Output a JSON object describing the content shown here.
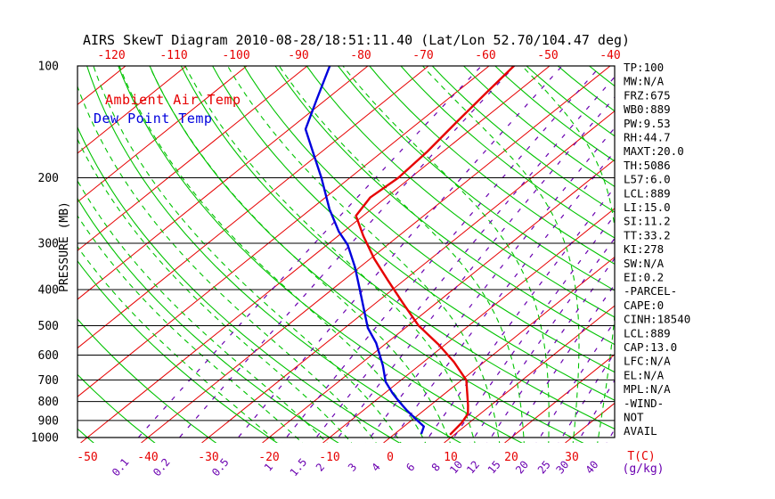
{
  "title": "AIRS SkewT Diagram 2010-08-28/18:51:11.40 (Lat/Lon 52.70/104.47 deg)",
  "colors": {
    "isotherm_red": "#e60000",
    "adiabat_green": "#00c300",
    "mixing_purple": "#6a00b0",
    "temp_curve_red": "#e60000",
    "dew_curve_blue": "#0000dd",
    "grid_black": "#000000"
  },
  "legend": {
    "temp_label": "Ambient Air Temp",
    "dew_label": "Dew Point Temp"
  },
  "axes": {
    "pressure_label": "PRESSURE (MB)",
    "pressure_ticks": [
      100,
      200,
      300,
      400,
      500,
      600,
      700,
      800,
      900,
      1000
    ],
    "top_temp_ticks": [
      -120,
      -110,
      -100,
      -90,
      -80,
      -70,
      -60,
      -50,
      -40
    ],
    "bottom_temp_ticks": [
      -50,
      -40,
      -30,
      -20,
      -10,
      0,
      10,
      20,
      30
    ],
    "temp_unit_label": "T(C)",
    "mixing_ratio_ticks": [
      0.1,
      0.2,
      0.5,
      1,
      1.5,
      2,
      3,
      4,
      6,
      8,
      10,
      12,
      15,
      20,
      25,
      30,
      40
    ],
    "mixing_unit_label": "(g/kg)"
  },
  "stats": [
    "TP:100",
    "MW:N/A",
    "FRZ:675",
    "WB0:889",
    "PW:9.53",
    "RH:44.7",
    "MAXT:20.0",
    "TH:5086",
    "L57:6.0",
    "LCL:889",
    "LI:15.0",
    "SI:11.2",
    "TT:33.2",
    "KI:278",
    "SW:N/A",
    "EI:0.2",
    "-PARCEL-",
    "CAPE:0",
    "CINH:18540",
    "LCL:889",
    "CAP:13.0",
    "LFC:N/A",
    "EL:N/A",
    "MPL:N/A",
    "-WIND-",
    "NOT",
    "AVAIL"
  ],
  "chart_data": {
    "type": "line",
    "title": "AIRS SkewT Diagram 2010-08-28/18:51:11.40 (Lat/Lon 52.70/104.47 deg)",
    "xlabel": "T(C)",
    "ylabel": "PRESSURE (MB)",
    "y_scale": "log",
    "y_range_mb": [
      100,
      1000
    ],
    "x_bottom_axis_range_C": [
      -50,
      30
    ],
    "x_top_axis_range_C": [
      -120,
      -40
    ],
    "grid": "skew-t log-p",
    "legend_position": "top-left-inside",
    "isotherms_C": {
      "min": -120,
      "max": 30,
      "step": 10
    },
    "dry_adiabats_theta_C": {
      "min": -50,
      "max": 180,
      "step": 10
    },
    "moist_adiabats_thetaw_C": {
      "min": -16,
      "max": 36,
      "step": 4
    },
    "mixing_ratio_lines_g_kg": [
      0.1,
      0.2,
      0.5,
      1,
      1.5,
      2,
      3,
      4,
      6,
      8,
      10,
      12,
      15,
      20,
      25,
      30,
      40
    ],
    "series": [
      {
        "name": "Ambient Air Temp",
        "points_p_mb_T_C": [
          [
            100,
            -55.9
          ],
          [
            119,
            -54.9
          ],
          [
            142,
            -53.8
          ],
          [
            170,
            -52.6
          ],
          [
            200,
            -52.0
          ],
          [
            226,
            -52.6
          ],
          [
            253,
            -51.2
          ],
          [
            287,
            -45.8
          ],
          [
            330,
            -39.4
          ],
          [
            378,
            -32.6
          ],
          [
            434,
            -25.6
          ],
          [
            499,
            -18.4
          ],
          [
            563,
            -11.0
          ],
          [
            626,
            -5.0
          ],
          [
            701,
            0.8
          ],
          [
            818,
            6.2
          ],
          [
            864,
            8.0
          ],
          [
            915,
            8.8
          ],
          [
            983,
            9.3
          ]
        ]
      },
      {
        "name": "Dew Point Temp",
        "points_p_mb_T_C": [
          [
            100,
            -86.3
          ],
          [
            124,
            -81.4
          ],
          [
            148,
            -77.3
          ],
          [
            175,
            -70.3
          ],
          [
            200,
            -64.7
          ],
          [
            243,
            -56.9
          ],
          [
            279,
            -50.8
          ],
          [
            303,
            -46.6
          ],
          [
            348,
            -40.8
          ],
          [
            404,
            -35.0
          ],
          [
            507,
            -26.2
          ],
          [
            557,
            -21.7
          ],
          [
            640,
            -16.0
          ],
          [
            708,
            -12.2
          ],
          [
            760,
            -8.7
          ],
          [
            802,
            -5.8
          ],
          [
            847,
            -2.7
          ],
          [
            894,
            0.6
          ],
          [
            934,
            3.3
          ],
          [
            978,
            4.4
          ]
        ]
      }
    ]
  }
}
